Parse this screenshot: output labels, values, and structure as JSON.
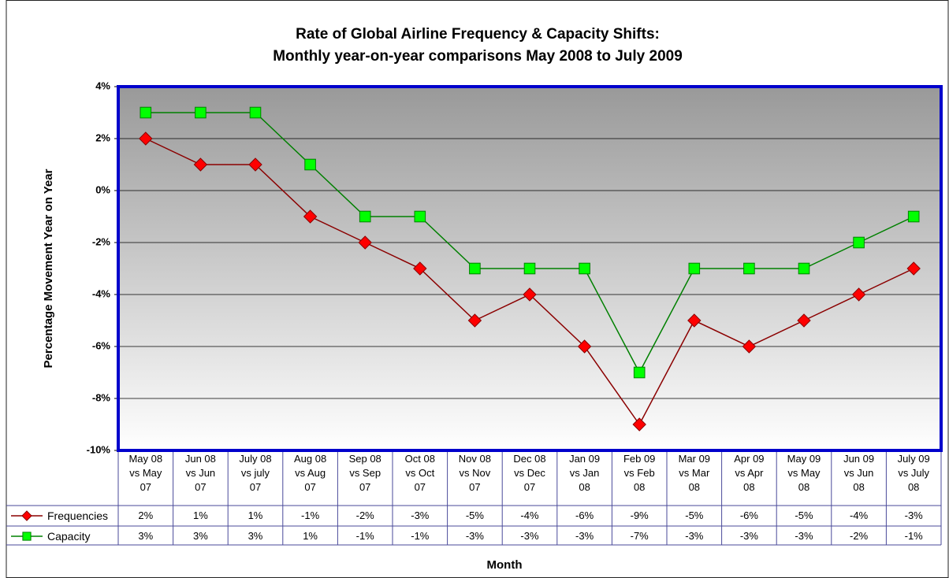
{
  "chart_data": {
    "type": "line",
    "title": "Rate of Global Airline Frequency & Capacity Shifts:",
    "subtitle": "Monthly year-on-year comparisons May 2008 to July 2009",
    "x_label": "Month",
    "y_label": "Percentage Movement Year on Year",
    "categories": [
      "May 08\nvs May\n07",
      "Jun 08\nvs Jun\n07",
      "July 08\nvs july\n07",
      "Aug 08\nvs Aug\n07",
      "Sep 08\nvs Sep\n07",
      "Oct 08\nvs Oct\n07",
      "Nov 08\nvs Nov\n07",
      "Dec 08\nvs Dec\n07",
      "Jan 09\nvs Jan\n08",
      "Feb 09\nvs Feb\n08",
      "Mar 09\nvs Mar\n08",
      "Apr 09\nvs Apr\n08",
      "May 09\nvs May\n08",
      "Jun 09\nvs Jun\n08",
      "July 09\nvs July\n08"
    ],
    "series": [
      {
        "name": "Frequencies",
        "color": "#8b0000",
        "marker_color": "#ff0000",
        "marker": "diamond",
        "values": [
          2,
          1,
          1,
          -1,
          -2,
          -3,
          -5,
          -4,
          -6,
          -9,
          -5,
          -6,
          -5,
          -4,
          -3
        ],
        "value_labels": [
          "2%",
          "1%",
          "1%",
          "-1%",
          "-2%",
          "-3%",
          "-5%",
          "-4%",
          "-6%",
          "-9%",
          "-5%",
          "-6%",
          "-5%",
          "-4%",
          "-3%"
        ]
      },
      {
        "name": "Capacity",
        "color": "#008000",
        "marker_color": "#00ff00",
        "marker": "square",
        "values": [
          3,
          3,
          3,
          1,
          -1,
          -1,
          -3,
          -3,
          -3,
          -7,
          -3,
          -3,
          -3,
          -2,
          -1
        ],
        "value_labels": [
          "3%",
          "3%",
          "3%",
          "1%",
          "-1%",
          "-1%",
          "-3%",
          "-3%",
          "-3%",
          "-7%",
          "-3%",
          "-3%",
          "-3%",
          "-2%",
          "-1%"
        ]
      }
    ],
    "ylim": [
      -10,
      4
    ],
    "yticks": [
      {
        "value": -10,
        "label": "-10%"
      },
      {
        "value": -8,
        "label": "-8%"
      },
      {
        "value": -6,
        "label": "-6%"
      },
      {
        "value": -4,
        "label": "-4%"
      },
      {
        "value": -2,
        "label": "-2%"
      },
      {
        "value": 0,
        "label": "0%"
      },
      {
        "value": 2,
        "label": "2%"
      },
      {
        "value": 4,
        "label": "4%"
      }
    ],
    "grid": true
  }
}
